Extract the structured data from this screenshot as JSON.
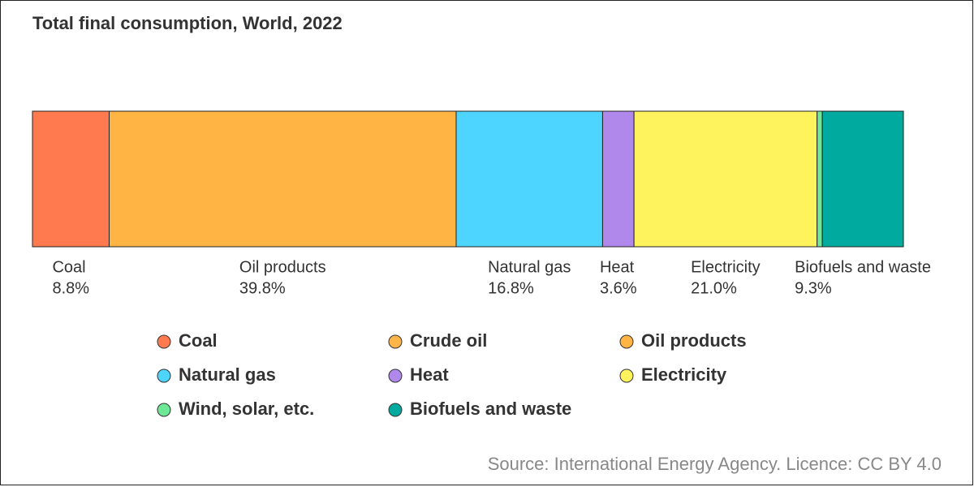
{
  "chart_data": {
    "type": "stacked-bar",
    "title": "Total final consumption, World, 2022",
    "series": [
      {
        "name": "Coal",
        "color": "#ff7b4f",
        "values": [
          8.8
        ],
        "value_labels": [
          "8.8%"
        ]
      },
      {
        "name": "Crude oil",
        "color": "#ffb547",
        "values": [
          0
        ]
      },
      {
        "name": "Oil products",
        "color": "#ffb444",
        "values": [
          39.8
        ],
        "value_labels": [
          "39.8%"
        ]
      },
      {
        "name": "Natural gas",
        "color": "#4ed5ff",
        "values": [
          16.8
        ],
        "value_labels": [
          "16.8%"
        ]
      },
      {
        "name": "Heat",
        "color": "#b088eb",
        "values": [
          3.6
        ],
        "value_labels": [
          "3.6%"
        ]
      },
      {
        "name": "Electricity",
        "color": "#fff35d",
        "values": [
          21.0
        ],
        "value_labels": [
          "21.0%"
        ]
      },
      {
        "name": "Wind, solar, etc.",
        "color": "#6ee896",
        "values": [
          0.6
        ]
      },
      {
        "name": "Biofuels and waste",
        "color": "#00aa9e",
        "values": [
          9.3
        ],
        "value_labels": [
          "9.3%"
        ]
      }
    ],
    "source": "Source: International Energy Agency. Licence: CC BY 4.0"
  }
}
